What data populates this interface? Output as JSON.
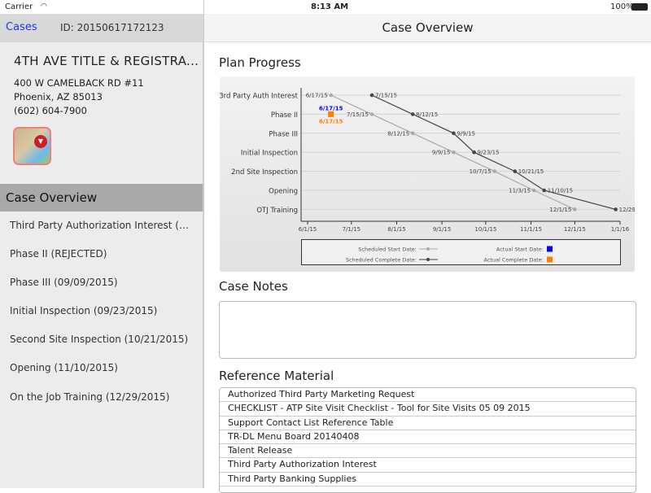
{
  "status_bar": {
    "carrier": "Carrier",
    "time": "8:13 AM",
    "battery": "100%"
  },
  "nav": {
    "back_label": "Cases",
    "case_id": "ID: 20150617172123",
    "title": "Case Overview"
  },
  "business": {
    "name": "4TH AVE TITLE & REGISTRA...",
    "address": "400 W CAMELBACK RD #11",
    "city": "Phoenix, AZ  85013",
    "phone": "(602) 604-7900"
  },
  "sidebar": {
    "section_title": "Case Overview",
    "items": [
      {
        "label": "Third Party Authorization Interest (07/15/..."
      },
      {
        "label": "Phase II (REJECTED)"
      },
      {
        "label": "Phase III (09/09/2015)"
      },
      {
        "label": "Initial Inspection (09/23/2015)"
      },
      {
        "label": "Second Site Inspection (10/21/2015)"
      },
      {
        "label": "Opening (11/10/2015)"
      },
      {
        "label": "On the Job Training (12/29/2015)"
      }
    ]
  },
  "main": {
    "plan_title": "Plan Progress",
    "notes_title": "Case Notes",
    "notes_value": "",
    "ref_title": "Reference Material",
    "references": [
      "Authorized Third Party Marketing Request",
      "CHECKLIST - ATP Site Visit Checklist - Tool for Site Visits 05 09 2015",
      "Support Contact List Reference Table",
      "TR-DL Menu Board 20140408",
      "Talent Release",
      "Third Party Authorization Interest",
      "Third Party Banking Supplies"
    ]
  },
  "chart_data": {
    "type": "line",
    "categories": [
      "3rd Party Auth Interest",
      "Phase II",
      "Phase III",
      "Initial Inspection",
      "2nd Site Inspection",
      "Opening",
      "OTJ Training"
    ],
    "x_ticks": [
      "6/1/15",
      "7/1/15",
      "8/1/15",
      "9/1/15",
      "10/1/15",
      "11/1/15",
      "12/1/15",
      "1/1/16"
    ],
    "xlim": [
      "2015-06-01",
      "2016-01-01"
    ],
    "series": [
      {
        "name": "Scheduled Start Date:",
        "color": "#aaaaaa",
        "values": [
          "6/17/15",
          "7/15/15",
          "8/12/15",
          "9/9/15",
          "10/7/15",
          "11/3/15",
          "12/1/15"
        ]
      },
      {
        "name": "Scheduled Complete Date:",
        "color": "#444444",
        "values": [
          "7/15/15",
          "8/12/15",
          "9/9/15",
          "9/23/15",
          "10/21/15",
          "11/10/15",
          "12/29/15"
        ]
      }
    ],
    "actual": [
      {
        "name": "Actual Start Date:",
        "color": "#0000ff",
        "category": "Phase II",
        "value": "6/17/15"
      },
      {
        "name": "Actual Complete Date:",
        "color": "#ff7f00",
        "category": "Phase II",
        "value": "6/17/15"
      }
    ],
    "grid": true,
    "legend": "bottom"
  }
}
